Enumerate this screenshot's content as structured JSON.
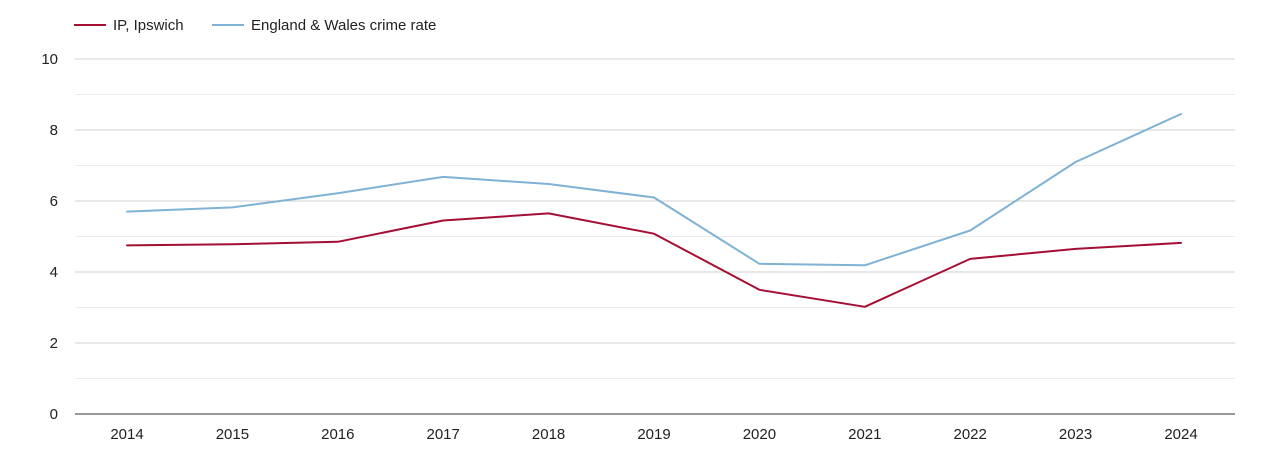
{
  "chart_data": {
    "type": "line",
    "title": "",
    "xlabel": "",
    "ylabel": "",
    "x": [
      "2014",
      "2015",
      "2016",
      "2017",
      "2018",
      "2019",
      "2020",
      "2021",
      "2022",
      "2023",
      "2024"
    ],
    "ylim": [
      0,
      10
    ],
    "yticks": [
      "0",
      "2",
      "4",
      "6",
      "8",
      "10"
    ],
    "grid": true,
    "legend_position": "top-left",
    "series": [
      {
        "name": "IP, Ipswich",
        "color": "#a50f34",
        "values": [
          4.75,
          4.78,
          4.85,
          5.45,
          5.65,
          5.08,
          3.5,
          3.02,
          4.37,
          4.65,
          4.82
        ]
      },
      {
        "name": "England & Wales crime rate",
        "color": "#7fb2d4",
        "values": [
          5.7,
          5.82,
          6.22,
          6.68,
          6.48,
          6.1,
          4.23,
          4.19,
          5.17,
          7.1,
          8.45
        ]
      }
    ]
  }
}
